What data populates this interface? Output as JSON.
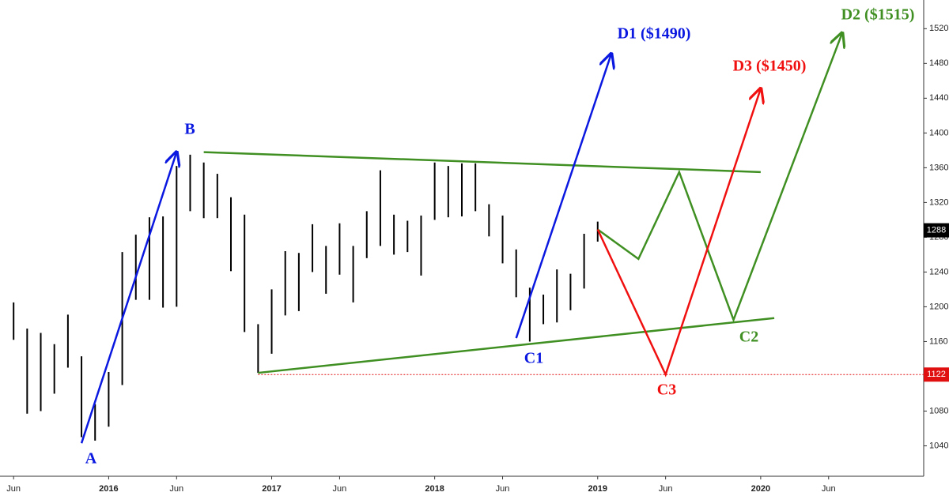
{
  "chart_data": {
    "type": "ohlc",
    "x": [
      "2015-06",
      "2015-07",
      "2015-08",
      "2015-09",
      "2015-10",
      "2015-11",
      "2015-12",
      "2016-01",
      "2016-02",
      "2016-03",
      "2016-04",
      "2016-05",
      "2016-06",
      "2016-07",
      "2016-08",
      "2016-09",
      "2016-10",
      "2016-11",
      "2016-12",
      "2017-01",
      "2017-02",
      "2017-03",
      "2017-04",
      "2017-05",
      "2017-06",
      "2017-07",
      "2017-08",
      "2017-09",
      "2017-10",
      "2017-11",
      "2017-12",
      "2018-01",
      "2018-02",
      "2018-03",
      "2018-04",
      "2018-05",
      "2018-06",
      "2018-07",
      "2018-08",
      "2018-09",
      "2018-10",
      "2018-11",
      "2018-12",
      "2019-01"
    ],
    "high": [
      1205,
      1175,
      1170,
      1157,
      1191,
      1143,
      1088,
      1125,
      1263,
      1283,
      1303,
      1304,
      1362,
      1375,
      1366,
      1353,
      1326,
      1306,
      1180,
      1220,
      1264,
      1262,
      1295,
      1270,
      1296,
      1270,
      1310,
      1357,
      1306,
      1299,
      1305,
      1366,
      1362,
      1365,
      1365,
      1318,
      1305,
      1266,
      1222,
      1214,
      1243,
      1238,
      1284,
      1298
    ],
    "low": [
      1162,
      1077,
      1080,
      1100,
      1130,
      1050,
      1046,
      1062,
      1110,
      1208,
      1208,
      1199,
      1200,
      1310,
      1302,
      1302,
      1241,
      1171,
      1124,
      1146,
      1190,
      1195,
      1240,
      1215,
      1237,
      1205,
      1256,
      1270,
      1260,
      1263,
      1236,
      1300,
      1303,
      1304,
      1310,
      1281,
      1250,
      1211,
      1160,
      1180,
      1182,
      1196,
      1221,
      1275
    ],
    "color": "#000000",
    "xlim": [
      "2015-05",
      "2021-01"
    ],
    "xticks": [
      {
        "value": "2015-06",
        "label": "Jun"
      },
      {
        "value": "2016-01",
        "label": "2016"
      },
      {
        "value": "2016-06",
        "label": "Jun"
      },
      {
        "value": "2017-01",
        "label": "2017"
      },
      {
        "value": "2017-06",
        "label": "Jun"
      },
      {
        "value": "2018-01",
        "label": "2018"
      },
      {
        "value": "2018-06",
        "label": "Jun"
      },
      {
        "value": "2019-01",
        "label": "2019"
      },
      {
        "value": "2019-06",
        "label": "Jun"
      },
      {
        "value": "2020-01",
        "label": "2020"
      },
      {
        "value": "2020-06",
        "label": "Jun"
      }
    ],
    "ylim": [
      1005,
      1553
    ],
    "yticks": [
      1040,
      1080,
      1120,
      1160,
      1200,
      1240,
      1280,
      1320,
      1360,
      1400,
      1440,
      1480,
      1520
    ],
    "price_labels": [
      {
        "value": 1288,
        "color": "#000000"
      },
      {
        "value": 1122,
        "color": "#e01010"
      }
    ],
    "lines": [
      {
        "color": "#0a18e0",
        "arrow": true,
        "x": [
          "2015-11",
          "2016-06"
        ],
        "y": [
          1043,
          1378
        ]
      },
      {
        "color": "#3f8f22",
        "arrow": false,
        "x": [
          "2016-08",
          "2020-01"
        ],
        "y": [
          1378,
          1355
        ]
      },
      {
        "color": "#3f8f22",
        "arrow": false,
        "x": [
          "2016-12",
          "2020-02"
        ],
        "y": [
          1124,
          1187
        ]
      },
      {
        "color": "#0a18e0",
        "arrow": true,
        "x": [
          "2018-07",
          "2019-02"
        ],
        "y": [
          1164,
          1491
        ]
      },
      {
        "color": "#3f8f22",
        "arrow": true,
        "x": [
          "2019-01",
          "2019-04",
          "2019-07",
          "2019-11",
          "2020-07"
        ],
        "y": [
          1289,
          1255,
          1355,
          1185,
          1515
        ]
      },
      {
        "color": "#f01010",
        "arrow": true,
        "x": [
          "2019-01",
          "2019-06",
          "2020-01"
        ],
        "y": [
          1289,
          1122,
          1451
        ]
      }
    ],
    "labels": [
      {
        "text": "A",
        "color": "#0a18e0"
      },
      {
        "text": "B",
        "color": "#0a18e0"
      },
      {
        "text": "C1",
        "color": "#0a18e0"
      },
      {
        "text": "D1 ($1490)",
        "color": "#0a18e0"
      },
      {
        "text": "D3 ($1450)",
        "color": "#f01010"
      },
      {
        "text": "D2 ($1515)",
        "color": "#3f8f22"
      },
      {
        "text": "C3",
        "color": "#f01010"
      },
      {
        "text": "C2",
        "color": "#3f8f22"
      }
    ]
  }
}
